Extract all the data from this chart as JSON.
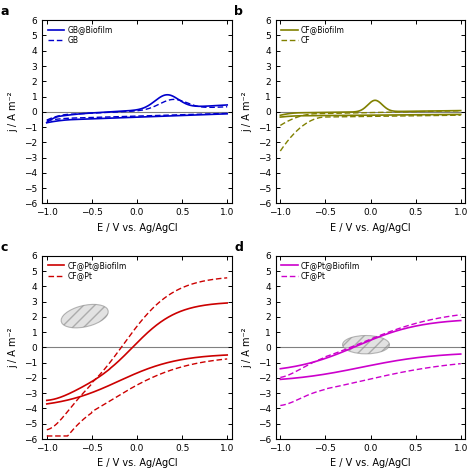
{
  "panel_a": {
    "label": "a",
    "color": "#0000CC",
    "legend": [
      "GB@Biofilm",
      "GB"
    ],
    "ylim": [
      -6,
      6
    ],
    "xlim": [
      -1.05,
      1.05
    ],
    "yticks": [
      -6,
      -5,
      -4,
      -3,
      -2,
      -1,
      0,
      1,
      2,
      3,
      4,
      5,
      6
    ],
    "xticks": [
      -1.0,
      -0.5,
      0.0,
      0.5,
      1.0
    ]
  },
  "panel_b": {
    "label": "b",
    "color": "#808000",
    "legend": [
      "CF@Biofilm",
      "CF"
    ],
    "ylim": [
      -6,
      6
    ],
    "xlim": [
      -1.05,
      1.05
    ],
    "yticks": [
      -6,
      -5,
      -4,
      -3,
      -2,
      -1,
      0,
      1,
      2,
      3,
      4,
      5,
      6
    ],
    "xticks": [
      -1.0,
      -0.5,
      0.0,
      0.5,
      1.0
    ]
  },
  "panel_c": {
    "label": "c",
    "color": "#CC0000",
    "legend": [
      "CF@Pt@Biofilm",
      "CF@Pt"
    ],
    "ylim": [
      -6,
      6
    ],
    "xlim": [
      -1.05,
      1.05
    ],
    "yticks": [
      -6,
      -5,
      -4,
      -3,
      -2,
      -1,
      0,
      1,
      2,
      3,
      4,
      5,
      6
    ],
    "xticks": [
      -1.0,
      -0.5,
      0.0,
      0.5,
      1.0
    ]
  },
  "panel_d": {
    "label": "d",
    "color": "#CC00CC",
    "legend": [
      "CF@Pt@Biofilm",
      "CF@Pt"
    ],
    "ylim": [
      -6,
      6
    ],
    "xlim": [
      -1.05,
      1.05
    ],
    "yticks": [
      -6,
      -5,
      -4,
      -3,
      -2,
      -1,
      0,
      1,
      2,
      3,
      4,
      5,
      6
    ],
    "xticks": [
      -1.0,
      -0.5,
      0.0,
      0.5,
      1.0
    ]
  },
  "xlabel": "E / V vs. Ag/AgCl",
  "ylabel": "j / A m⁻²"
}
